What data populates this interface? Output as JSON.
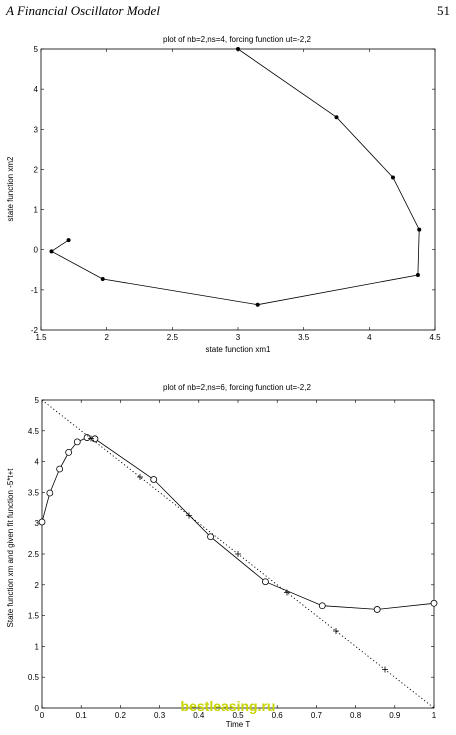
{
  "page": {
    "header_left": "A  Financial Oscillator Model",
    "page_number": "51"
  },
  "watermark": {
    "text": "bestleasing.ru",
    "color": "#c8d400"
  },
  "chart_data": [
    {
      "type": "line",
      "title": "plot of nb=2,ns=4, forcing function ut=-2,2",
      "xlabel": "state function xm1",
      "ylabel": "state function xm2",
      "xlim": [
        1.5,
        4.5
      ],
      "ylim": [
        -2,
        5
      ],
      "xticks": [
        1.5,
        2,
        2.5,
        3,
        3.5,
        4,
        4.5
      ],
      "xtick_labels": [
        "1.5",
        "2",
        "2.5",
        "3",
        "3.5",
        "4",
        "4.5"
      ],
      "yticks": [
        -2,
        -1,
        0,
        1,
        2,
        3,
        4,
        5
      ],
      "ytick_labels": [
        "-2",
        "-1",
        "0",
        "1",
        "2",
        "3",
        "4",
        "5"
      ],
      "grid": false,
      "marker": "*",
      "series": [
        {
          "x": [
            3.0,
            3.75,
            4.18,
            4.38,
            4.37,
            3.15,
            1.97,
            1.58,
            1.71
          ],
          "y": [
            5.0,
            3.3,
            1.8,
            0.5,
            -0.63,
            -1.37,
            -0.73,
            -0.04,
            0.24
          ]
        }
      ]
    },
    {
      "type": "line",
      "title": "plot of nb=2,ns=6, forcing function ut=-2,2",
      "xlabel": "Time T",
      "ylabel": "State function xm and given fit function -5*t+t",
      "xlim": [
        0,
        1
      ],
      "ylim": [
        0,
        5
      ],
      "xticks": [
        0,
        0.1,
        0.2,
        0.3,
        0.4,
        0.5,
        0.6,
        0.7,
        0.8,
        0.9,
        1
      ],
      "xtick_labels": [
        "0",
        "0.1",
        "0.2",
        "0.3",
        "0.4",
        "0.5",
        "0.6",
        "0.7",
        "0.8",
        "0.9",
        "1"
      ],
      "yticks": [
        0,
        0.5,
        1,
        1.5,
        2,
        2.5,
        3,
        3.5,
        4,
        4.5,
        5
      ],
      "ytick_labels": [
        "0",
        "0.5",
        "1",
        "1.5",
        "2",
        "2.5",
        "3",
        "3.5",
        "4",
        "4.5",
        "5"
      ],
      "grid": false,
      "series": [
        {
          "style": "solid",
          "marker": "o",
          "x": [
            0.0,
            0.02,
            0.045,
            0.068,
            0.09,
            0.115,
            0.135,
            0.285,
            0.43,
            0.57,
            0.715,
            0.855,
            1.0
          ],
          "y": [
            3.02,
            3.49,
            3.88,
            4.15,
            4.32,
            4.39,
            4.37,
            3.71,
            2.78,
            2.05,
            1.66,
            1.6,
            1.7
          ]
        },
        {
          "style": "dotted",
          "marker": "none",
          "x": [
            0,
            1
          ],
          "y": [
            5,
            0
          ]
        },
        {
          "style": "none",
          "marker": "+",
          "x": [
            0.125,
            0.25,
            0.375,
            0.5,
            0.625,
            0.75,
            0.875
          ],
          "y": [
            4.375,
            3.75,
            3.125,
            2.5,
            1.875,
            1.25,
            0.625
          ]
        }
      ]
    }
  ]
}
